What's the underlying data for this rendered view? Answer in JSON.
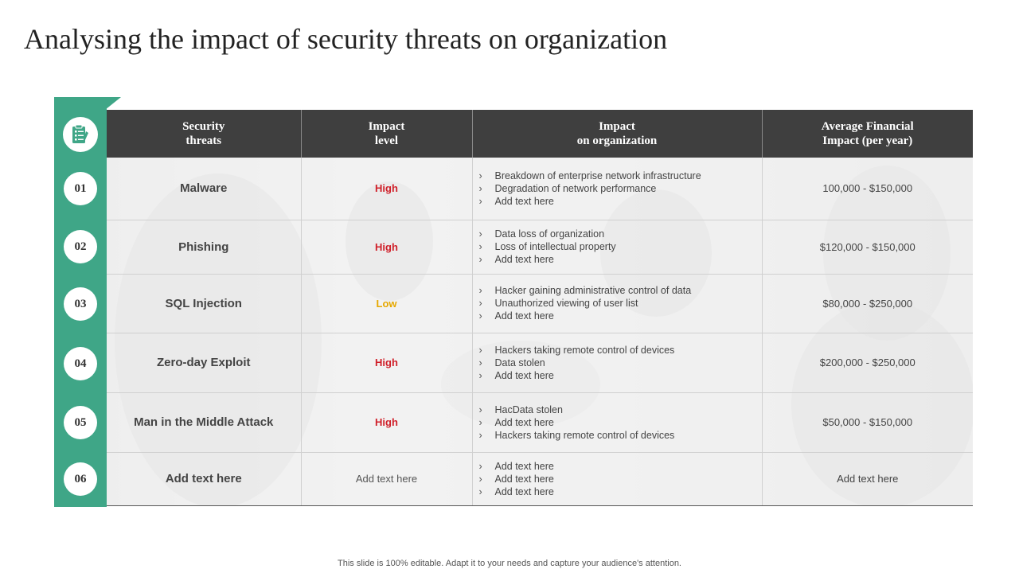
{
  "title": "Analysing the impact of security threats on organization",
  "headers": [
    [
      "Security",
      "threats"
    ],
    [
      "Impact",
      "level"
    ],
    [
      "Impact",
      "on organization"
    ],
    [
      "Average Financial",
      "Impact (per year)"
    ]
  ],
  "rows": [
    {
      "num": "01",
      "threat": "Malware",
      "level": "High",
      "impacts": [
        "Breakdown of enterprise network infrastructure",
        "Degradation of network performance",
        "Add text here"
      ],
      "amount": "100,000 - $150,000"
    },
    {
      "num": "02",
      "threat": "Phishing",
      "level": "High",
      "impacts": [
        "Data loss of organization",
        "Loss of intellectual property",
        "Add text here"
      ],
      "amount": "$120,000 - $150,000"
    },
    {
      "num": "03",
      "threat": "SQL Injection",
      "level": "Low",
      "impacts": [
        "Hacker gaining administrative control of data",
        "Unauthorized viewing of user list",
        "Add text here"
      ],
      "amount": "$80,000 - $250,000"
    },
    {
      "num": "04",
      "threat": "Zero-day Exploit",
      "level": "High",
      "impacts": [
        "Hackers taking remote control of devices",
        "Data stolen",
        "Add text here"
      ],
      "amount": "$200,000 - $250,000"
    },
    {
      "num": "05",
      "threat": "Man in the Middle Attack",
      "level": "High",
      "impacts": [
        "HacData stolen",
        "Add text here",
        "Hackers taking remote control of devices"
      ],
      "amount": "$50,000 - $150,000"
    },
    {
      "num": "06",
      "threat": "Add text here",
      "level": "Add text here",
      "impacts": [
        "Add text here",
        "Add text here",
        "Add text here"
      ],
      "amount": "Add text here"
    }
  ],
  "bullet_glyph": "›",
  "footer": "This slide is 100% editable. Adapt it to your needs and capture your audience's attention.",
  "colors": {
    "accent": "#3fa687",
    "header_bg": "#3f3f3f",
    "high": "#d0202a",
    "low": "#e6a800"
  },
  "icons": {
    "header_icon": "clipboard-checklist-icon"
  }
}
